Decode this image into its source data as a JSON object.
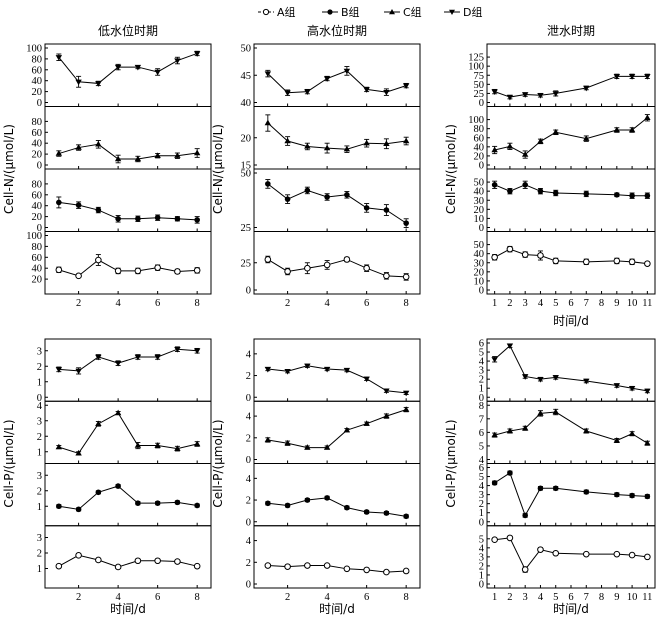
{
  "legend": {
    "items": [
      {
        "label": "A组",
        "marker": "open-circle"
      },
      {
        "label": "B组",
        "marker": "filled-circle"
      },
      {
        "label": "C组",
        "marker": "triangle-up"
      },
      {
        "label": "D组",
        "marker": "triangle-down"
      }
    ]
  },
  "chart_data": [
    {
      "type": "line",
      "title": "低水位时期",
      "xlabel": "",
      "ylabel": "Cell-N/(μmol/L)",
      "x": [
        1,
        2,
        3,
        4,
        5,
        6,
        7,
        8
      ],
      "xticks": [
        2,
        4,
        6,
        8
      ],
      "xlim": [
        0.3,
        8.7
      ],
      "panels": [
        {
          "group": "D组",
          "marker": "triangle-down",
          "ylim": [
            0,
            100
          ],
          "yticks": [
            0,
            20,
            40,
            60,
            80,
            100
          ],
          "values": [
            83,
            38,
            35,
            65,
            65,
            56,
            77,
            90
          ],
          "errors": [
            6,
            10,
            4,
            5,
            3,
            6,
            6,
            4
          ]
        },
        {
          "group": "C组",
          "marker": "triangle-up",
          "ylim": [
            0,
            100
          ],
          "yticks": [
            0,
            20,
            40,
            60,
            80
          ],
          "values": [
            21,
            32,
            38,
            11,
            11,
            17,
            17,
            22
          ],
          "errors": [
            5,
            5,
            7,
            7,
            5,
            4,
            5,
            8
          ]
        },
        {
          "group": "B组",
          "marker": "filled-circle",
          "ylim": [
            0,
            100
          ],
          "yticks": [
            0,
            20,
            40,
            60,
            80
          ],
          "values": [
            46,
            41,
            32,
            16,
            16,
            18,
            16,
            14
          ],
          "errors": [
            10,
            6,
            5,
            6,
            5,
            5,
            4,
            6
          ]
        },
        {
          "group": "A组",
          "marker": "open-circle",
          "ylim": [
            0,
            100
          ],
          "yticks": [
            20,
            40,
            60,
            80,
            100
          ],
          "values": [
            37,
            26,
            55,
            35,
            35,
            41,
            34,
            36
          ],
          "errors": [
            5,
            3,
            10,
            5,
            5,
            5,
            4,
            5
          ]
        }
      ]
    },
    {
      "type": "line",
      "title": "高水位时期",
      "xlabel": "",
      "ylabel": "Cell-N/(μmol/L)",
      "x": [
        1,
        2,
        3,
        4,
        5,
        6,
        7,
        8
      ],
      "xticks": [
        2,
        4,
        6,
        8
      ],
      "xlim": [
        0.3,
        8.7
      ],
      "panels": [
        {
          "group": "D组",
          "marker": "triangle-down",
          "ylim": [
            40,
            50
          ],
          "yticks": [
            40,
            45,
            50
          ],
          "values": [
            45.3,
            41.8,
            42.0,
            44.4,
            45.8,
            42.4,
            41.9,
            43.1
          ],
          "errors": [
            0.6,
            0.5,
            0.4,
            0.4,
            0.8,
            0.4,
            0.6,
            0.4
          ]
        },
        {
          "group": "C组",
          "marker": "triangle-up",
          "ylim": [
            15,
            25
          ],
          "yticks": [
            15,
            20
          ],
          "values": [
            22.7,
            19.4,
            18.4,
            18.1,
            17.9,
            19.0,
            18.9,
            19.4
          ],
          "errors": [
            1.5,
            0.8,
            0.6,
            0.9,
            0.6,
            0.7,
            0.9,
            0.7
          ]
        },
        {
          "group": "B组",
          "marker": "filled-circle",
          "ylim": [
            25,
            50
          ],
          "yticks": [
            25,
            50
          ],
          "values": [
            45,
            38,
            42,
            39,
            40,
            34,
            33,
            27
          ],
          "errors": [
            2,
            2,
            1.5,
            1.5,
            1.5,
            2,
            2.5,
            2
          ]
        },
        {
          "group": "A组",
          "marker": "open-circle",
          "ylim": [
            0,
            50
          ],
          "yticks": [
            0,
            25
          ],
          "values": [
            28,
            17,
            20,
            23,
            28,
            20,
            13,
            12
          ],
          "errors": [
            3,
            3,
            5,
            4,
            2,
            3,
            3,
            3
          ]
        }
      ]
    },
    {
      "type": "line",
      "title": "泄水时期",
      "xlabel": "时间/d",
      "ylabel": "Cell-N/(μmol/L)",
      "x": [
        1,
        2,
        3,
        4,
        5,
        7,
        9,
        10,
        11
      ],
      "xticks": [
        1,
        2,
        3,
        4,
        5,
        6,
        7,
        8,
        9,
        10,
        11
      ],
      "xlim": [
        0.5,
        11.5
      ],
      "panels": [
        {
          "group": "D组",
          "marker": "triangle-down",
          "ylim": [
            0,
            150
          ],
          "yticks": [
            0,
            25,
            50,
            75,
            100,
            125
          ],
          "values": [
            30,
            15,
            22,
            20,
            25,
            40,
            72,
            72,
            72
          ],
          "errors": [
            6,
            5,
            5,
            5,
            7,
            5,
            6,
            6,
            6
          ]
        },
        {
          "group": "C组",
          "marker": "triangle-up",
          "ylim": [
            0,
            120
          ],
          "yticks": [
            0,
            20,
            40,
            60,
            80,
            100
          ],
          "values": [
            33,
            41,
            23,
            52,
            72,
            58,
            77,
            77,
            104
          ],
          "errors": [
            8,
            7,
            8,
            5,
            5,
            6,
            5,
            5,
            7
          ]
        },
        {
          "group": "B组",
          "marker": "filled-circle",
          "ylim": [
            0,
            60
          ],
          "yticks": [
            0,
            10,
            20,
            30,
            40,
            50
          ],
          "values": [
            47,
            40,
            47,
            40,
            38,
            37,
            36,
            35,
            35
          ],
          "errors": [
            4,
            3,
            4,
            3,
            3,
            3,
            2,
            3,
            3
          ]
        },
        {
          "group": "A组",
          "marker": "open-circle",
          "ylim": [
            0,
            60
          ],
          "yticks": [
            0,
            10,
            20,
            30,
            40,
            50
          ],
          "values": [
            36,
            45,
            39,
            38,
            32,
            31,
            32,
            31,
            29
          ],
          "errors": [
            3,
            3,
            3,
            5,
            3,
            3,
            3,
            3,
            2
          ]
        }
      ]
    },
    {
      "type": "line",
      "title": "",
      "xlabel": "时间/d",
      "ylabel": "Cell-P/(μmol/L)",
      "x": [
        1,
        2,
        3,
        4,
        5,
        6,
        7,
        8
      ],
      "xticks": [
        2,
        4,
        6,
        8
      ],
      "xlim": [
        0.3,
        8.7
      ],
      "panels": [
        {
          "group": "D组",
          "marker": "triangle-down",
          "ylim": [
            0,
            3.5
          ],
          "yticks": [
            0,
            1,
            2,
            3
          ],
          "values": [
            1.8,
            1.7,
            2.6,
            2.2,
            2.6,
            2.6,
            3.1,
            3.0
          ],
          "errors": [
            0.15,
            0.2,
            0.15,
            0.15,
            0.15,
            0.15,
            0.15,
            0.15
          ]
        },
        {
          "group": "C组",
          "marker": "triangle-up",
          "ylim": [
            0.5,
            4
          ],
          "yticks": [
            1,
            2,
            3,
            4
          ],
          "values": [
            1.3,
            0.9,
            2.8,
            3.5,
            1.4,
            1.4,
            1.2,
            1.5
          ],
          "errors": [
            0.1,
            0.1,
            0.15,
            0.1,
            0.2,
            0.15,
            0.15,
            0.15
          ]
        },
        {
          "group": "B组",
          "marker": "filled-circle",
          "ylim": [
            0,
            3.5
          ],
          "yticks": [
            1,
            2,
            3
          ],
          "values": [
            1.0,
            0.8,
            1.9,
            2.3,
            1.2,
            1.2,
            1.25,
            1.05
          ],
          "errors": [
            0.1,
            0.1,
            0.1,
            0.1,
            0.1,
            0.1,
            0.1,
            0.1
          ]
        },
        {
          "group": "A组",
          "marker": "open-circle",
          "ylim": [
            0,
            3.5
          ],
          "yticks": [
            1,
            2,
            3
          ],
          "values": [
            1.15,
            1.85,
            1.55,
            1.1,
            1.5,
            1.5,
            1.45,
            1.15
          ],
          "errors": [
            0.1,
            0.1,
            0.1,
            0.1,
            0.1,
            0.1,
            0.1,
            0.1
          ]
        }
      ]
    },
    {
      "type": "line",
      "title": "",
      "xlabel": "时间/d",
      "ylabel": "Cell-P/(μmol/L)",
      "x": [
        1,
        2,
        3,
        4,
        5,
        6,
        7,
        8
      ],
      "xticks": [
        2,
        4,
        6,
        8
      ],
      "xlim": [
        0.3,
        8.7
      ],
      "panels": [
        {
          "group": "D组",
          "marker": "triangle-down",
          "ylim": [
            0,
            5
          ],
          "yticks": [
            0,
            2,
            4
          ],
          "values": [
            2.6,
            2.4,
            2.9,
            2.6,
            2.5,
            1.7,
            0.6,
            0.4
          ],
          "errors": [
            0.15,
            0.15,
            0.15,
            0.15,
            0.15,
            0.15,
            0.15,
            0.15
          ]
        },
        {
          "group": "C组",
          "marker": "triangle-up",
          "ylim": [
            0,
            5
          ],
          "yticks": [
            0,
            2,
            4
          ],
          "values": [
            1.8,
            1.5,
            1.1,
            1.1,
            2.7,
            3.3,
            4.0,
            4.6
          ],
          "errors": [
            0.2,
            0.2,
            0.15,
            0.15,
            0.15,
            0.15,
            0.2,
            0.2
          ]
        },
        {
          "group": "B组",
          "marker": "filled-circle",
          "ylim": [
            0,
            5
          ],
          "yticks": [
            0,
            2,
            4
          ],
          "values": [
            1.7,
            1.5,
            2.0,
            2.2,
            1.3,
            0.9,
            0.8,
            0.5
          ],
          "errors": [
            0.15,
            0.15,
            0.15,
            0.15,
            0.15,
            0.15,
            0.15,
            0.15
          ]
        },
        {
          "group": "A组",
          "marker": "open-circle",
          "ylim": [
            0,
            5
          ],
          "yticks": [
            0,
            2,
            4
          ],
          "values": [
            1.7,
            1.6,
            1.7,
            1.7,
            1.4,
            1.3,
            1.1,
            1.2
          ],
          "errors": [
            0.1,
            0.1,
            0.1,
            0.1,
            0.1,
            0.1,
            0.1,
            0.1
          ]
        }
      ]
    },
    {
      "type": "line",
      "title": "",
      "xlabel": "时间/d",
      "ylabel": "Cell-P/(μmol/L)",
      "x": [
        1,
        2,
        3,
        4,
        5,
        7,
        9,
        10,
        11
      ],
      "xticks": [
        1,
        2,
        3,
        4,
        5,
        6,
        7,
        8,
        9,
        10,
        11
      ],
      "xlim": [
        0.5,
        11.5
      ],
      "panels": [
        {
          "group": "D组",
          "marker": "triangle-down",
          "ylim": [
            0,
            6
          ],
          "yticks": [
            0,
            1,
            2,
            3,
            4,
            5,
            6
          ],
          "values": [
            4.2,
            5.7,
            2.3,
            2.0,
            2.2,
            1.8,
            1.3,
            1.0,
            0.7
          ],
          "errors": [
            0.3,
            0.2,
            0.2,
            0.2,
            0.2,
            0.2,
            0.2,
            0.2,
            0.2
          ]
        },
        {
          "group": "C组",
          "marker": "triangle-up",
          "ylim": [
            4,
            8
          ],
          "yticks": [
            4,
            5,
            6,
            7,
            8
          ],
          "values": [
            5.8,
            6.1,
            6.3,
            7.4,
            7.5,
            6.1,
            5.4,
            5.9,
            5.2
          ],
          "errors": [
            0.15,
            0.15,
            0.15,
            0.2,
            0.2,
            0.15,
            0.15,
            0.15,
            0.15
          ]
        },
        {
          "group": "B组",
          "marker": "filled-circle",
          "ylim": [
            0,
            6
          ],
          "yticks": [
            0,
            1,
            2,
            3,
            4,
            5,
            6
          ],
          "values": [
            4.3,
            5.4,
            0.7,
            3.7,
            3.7,
            3.3,
            3.0,
            2.9,
            2.8
          ],
          "errors": [
            0.2,
            0.2,
            0.2,
            0.2,
            0.2,
            0.2,
            0.2,
            0.2,
            0.2
          ]
        },
        {
          "group": "A组",
          "marker": "open-circle",
          "ylim": [
            0,
            6
          ],
          "yticks": [
            0,
            1,
            2,
            3,
            4,
            5
          ],
          "values": [
            4.9,
            5.1,
            1.6,
            3.8,
            3.4,
            3.3,
            3.3,
            3.2,
            3.0
          ],
          "errors": [
            0.15,
            0.15,
            0.3,
            0.2,
            0.15,
            0.15,
            0.15,
            0.15,
            0.15
          ]
        }
      ]
    }
  ]
}
